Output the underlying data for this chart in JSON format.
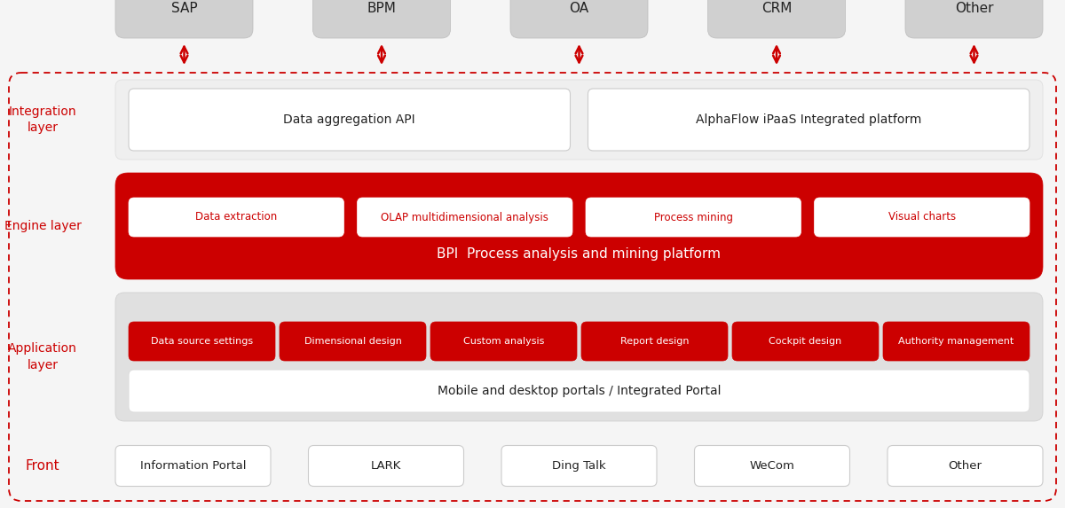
{
  "bg_color": "#f5f5f5",
  "dashed_border_color": "#cc0000",
  "light_gray": "#e0e0e0",
  "mid_gray": "#ebebeb",
  "dark_red": "#cc0000",
  "red_box_color": "#cc0000",
  "white": "#ffffff",
  "text_dark": "#222222",
  "text_red": "#cc0000",
  "bot_gray": "#d0d0d0",
  "front_label": "Front",
  "front_items": [
    "Information Portal",
    "LARK",
    "Ding Talk",
    "WeCom",
    "Other"
  ],
  "app_label": "Application\nlayer",
  "app_portal_text": "Mobile and desktop portals / Integrated Portal",
  "app_red_buttons": [
    "Data source settings",
    "Dimensional design",
    "Custom analysis",
    "Report design",
    "Cockpit design",
    "Authority management"
  ],
  "engine_label": "Engine layer",
  "engine_title": "BPI  Process analysis and mining platform",
  "engine_white_buttons": [
    "Data extraction",
    "OLAP multidimensional analysis",
    "Process mining",
    "Visual charts"
  ],
  "integration_label": "Integration\nlayer",
  "integration_boxes": [
    "Data aggregation API",
    "AlphaFlow iPaaS Integrated platform"
  ],
  "bottom_items": [
    "SAP",
    "BPM",
    "OA",
    "CRM",
    "Other"
  ],
  "figsize": [
    12.0,
    5.73
  ],
  "dpi": 100
}
